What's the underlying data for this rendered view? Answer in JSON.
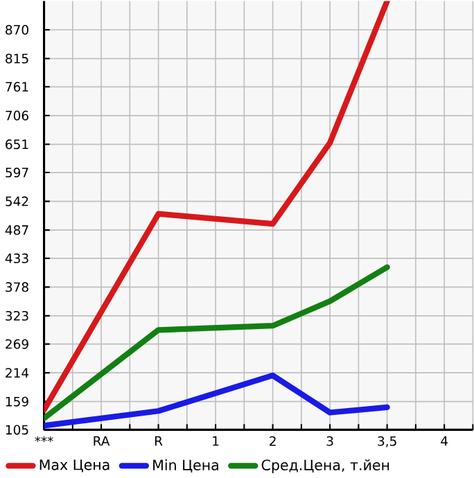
{
  "chart_data": {
    "type": "line",
    "categories": [
      "***",
      "RA",
      "R",
      "1",
      "2",
      "3",
      "3,5",
      "4"
    ],
    "series": [
      {
        "name": "Max Цена",
        "color": "#d7191c",
        "values": [
          143,
          null,
          518,
          null,
          499,
          654,
          925,
          null
        ]
      },
      {
        "name": "Min Цена",
        "color": "#1a1ae6",
        "values": [
          113,
          null,
          141,
          null,
          209,
          138,
          148,
          null
        ]
      },
      {
        "name": "Сред.Цена, т.йен",
        "color": "#138013",
        "values": [
          127,
          null,
          296,
          null,
          304,
          351,
          416,
          null
        ]
      }
    ],
    "ylim": [
      105,
      925
    ],
    "yticks": [
      105,
      159,
      214,
      269,
      323,
      378,
      433,
      487,
      542,
      597,
      651,
      706,
      761,
      815,
      870
    ],
    "grid": true,
    "legend": "bottom left",
    "marker": "none",
    "line_style": "solid"
  }
}
